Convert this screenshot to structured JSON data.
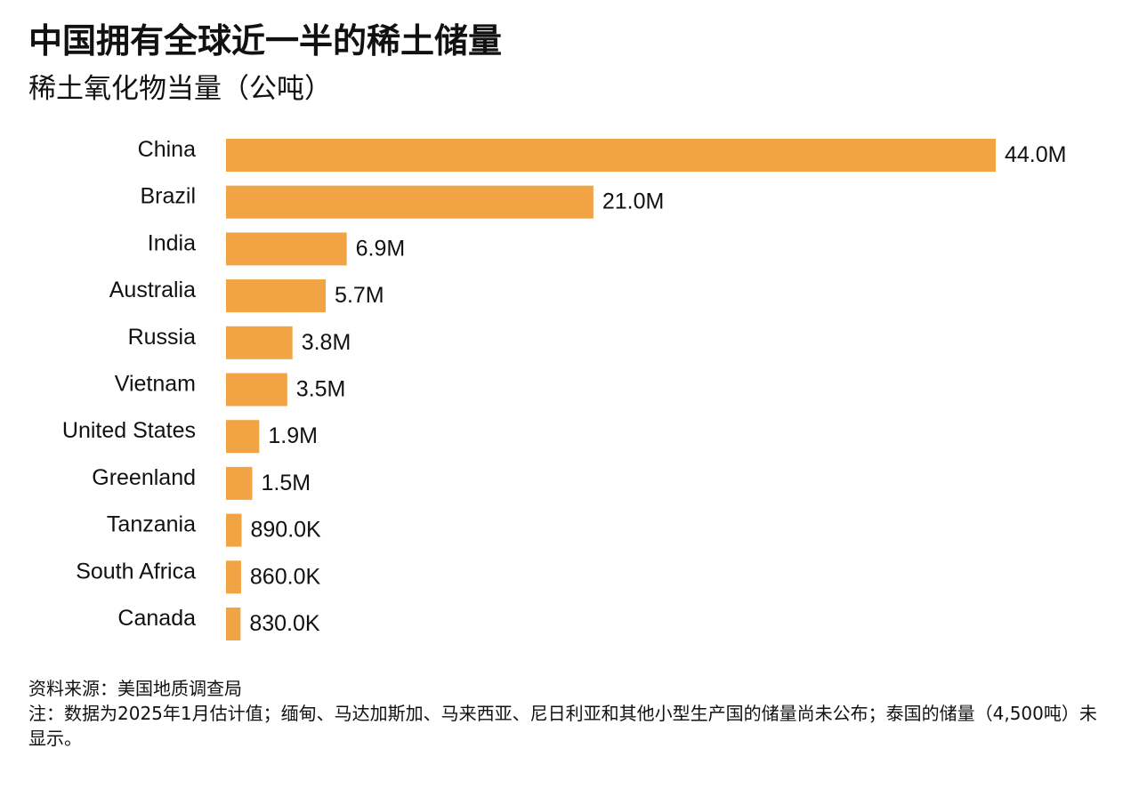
{
  "header": {
    "title": "中国拥有全球近一半的稀土储量",
    "subtitle": "稀土氧化物当量（公吨）"
  },
  "chart_data": {
    "type": "bar",
    "orientation": "horizontal",
    "title": "中国拥有全球近一半的稀土储量",
    "subtitle": "稀土氧化物当量（公吨）",
    "xlabel": "",
    "ylabel": "",
    "xlim": [
      0,
      44000000
    ],
    "grid": false,
    "color": "#F2A444",
    "categories": [
      "China",
      "Brazil",
      "India",
      "Australia",
      "Russia",
      "Vietnam",
      "United States",
      "Greenland",
      "Tanzania",
      "South Africa",
      "Canada"
    ],
    "values": [
      44000000,
      21000000,
      6900000,
      5700000,
      3800000,
      3500000,
      1900000,
      1500000,
      890000,
      860000,
      830000
    ],
    "value_labels": [
      "44.0M",
      "21.0M",
      "6.9M",
      "5.7M",
      "3.8M",
      "3.5M",
      "1.9M",
      "1.5M",
      "890.0K",
      "860.0K",
      "830.0K"
    ]
  },
  "footer": {
    "source": "资料来源：美国地质调查局",
    "note": "注：数据为2025年1月估计值；缅甸、马达加斯加、马来西亚、尼日利亚和其他小型生产国的储量尚未公布；泰国的储量（4,500吨）未显示。"
  }
}
